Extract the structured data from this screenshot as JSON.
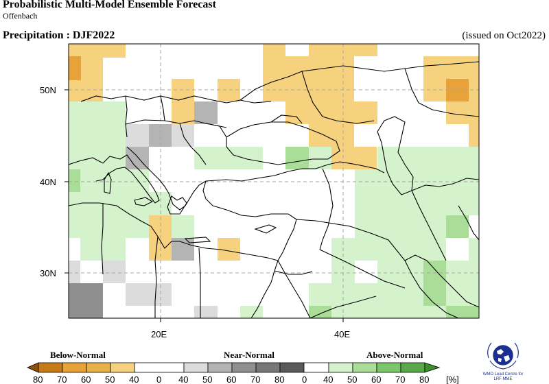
{
  "header": {
    "title": "Probabilistic Multi-Model Ensemble Forecast",
    "subtitle": "Offenbach",
    "variable_line": "Precipitation : DJF2022",
    "issued": "(issued on Oct2022)"
  },
  "map": {
    "lat_labels": [
      "50N",
      "40N",
      "30N"
    ],
    "lon_labels": [
      "20E",
      "40E"
    ],
    "extent": {
      "lon_min": 10,
      "lon_max": 55,
      "lat_min": 25,
      "lat_max": 55
    }
  },
  "legend": {
    "categories": [
      "Below-Normal",
      "Near-Normal",
      "Above-Normal"
    ],
    "ticks": [
      "80",
      "70",
      "60",
      "50",
      "40",
      "0",
      "40",
      "50",
      "60",
      "70",
      "80",
      "0",
      "40",
      "50",
      "60",
      "70",
      "80"
    ],
    "unit": "[%]",
    "colors": {
      "below": [
        "#8c510a",
        "#c77b18",
        "#e8a23a",
        "#f6d27e"
      ],
      "near": [
        "#dcdcdc",
        "#b4b4b4",
        "#8f8f8f",
        "#5a5a5a"
      ],
      "above": [
        "#d4f2cc",
        "#a9dd98",
        "#7bc56b",
        "#3d8f2d"
      ]
    }
  },
  "logo": {
    "line1": "WMO Lead Centre for",
    "line2": "LRF MME"
  }
}
